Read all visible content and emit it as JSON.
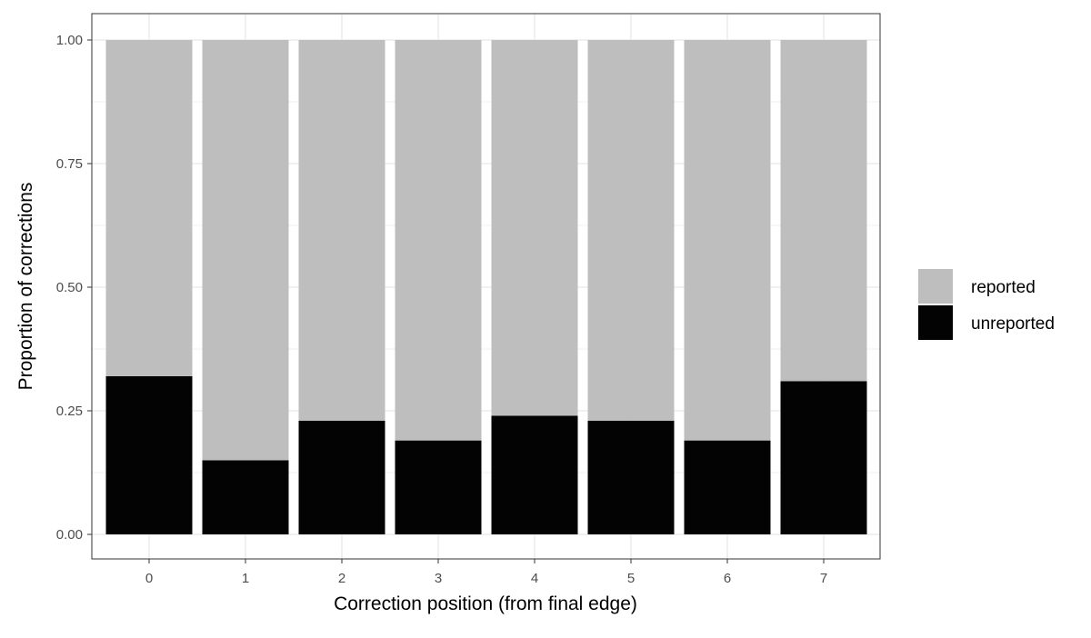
{
  "chart_data": {
    "type": "bar",
    "stacked": true,
    "title": "",
    "xlabel": "Correction position (from final edge)",
    "ylabel": "Proportion of corrections",
    "categories": [
      "0",
      "1",
      "2",
      "3",
      "4",
      "5",
      "6",
      "7"
    ],
    "ylim": [
      0,
      1
    ],
    "yticks": [
      "0.00",
      "0.25",
      "0.50",
      "0.75",
      "1.00"
    ],
    "grid": true,
    "legend_position": "right",
    "series": [
      {
        "name": "unreported",
        "color": "#030303",
        "values": [
          0.32,
          0.15,
          0.23,
          0.19,
          0.24,
          0.23,
          0.19,
          0.31
        ]
      },
      {
        "name": "reported",
        "color": "#bebebe",
        "values": [
          0.68,
          0.85,
          0.77,
          0.81,
          0.76,
          0.77,
          0.81,
          0.69
        ]
      }
    ],
    "legend": [
      "reported",
      "unreported"
    ]
  }
}
